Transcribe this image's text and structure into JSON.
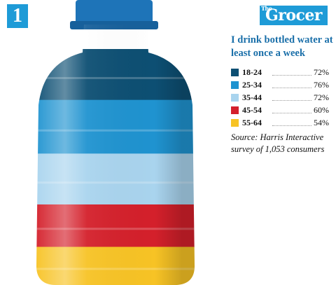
{
  "brand": {
    "number_badge": "1",
    "logo_small": "The",
    "logo": "Grocer",
    "accent_color": "#1e9bd7"
  },
  "chart_data": {
    "type": "bar",
    "title": "I drink bottled water at least once a week",
    "categories": [
      "18-24",
      "25-34",
      "35-44",
      "45-54",
      "55-64"
    ],
    "values": [
      72,
      76,
      72,
      60,
      54
    ],
    "value_labels": [
      "72%",
      "76%",
      "72%",
      "60%",
      "54%"
    ],
    "colors": [
      "#0d4f73",
      "#1f93d0",
      "#a9d4ee",
      "#d4202b",
      "#f7c325"
    ],
    "ylim": [
      0,
      100
    ],
    "legend": "right",
    "source": "Source: Harris Interactive survey of 1,053 consumers"
  }
}
